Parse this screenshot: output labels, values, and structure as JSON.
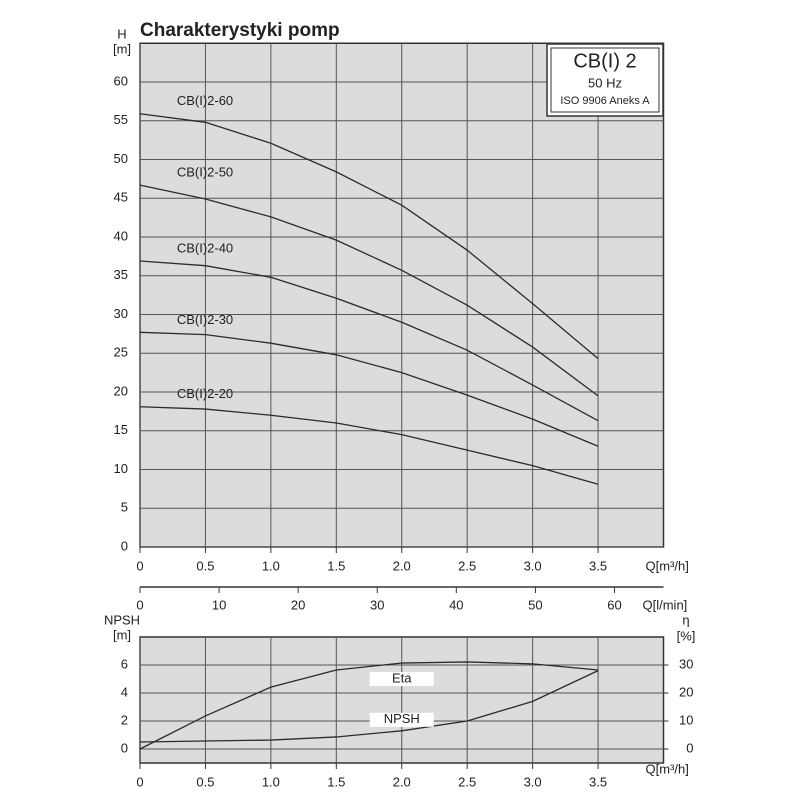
{
  "chart_data": [
    {
      "type": "line",
      "title": "Charakterystyki pomp",
      "annotations": [
        "CB(I) 2",
        "50 Hz",
        "ISO 9906 Aneks  A"
      ],
      "y_label": [
        "H",
        "[m]"
      ],
      "x_label": "Q[m³/h]",
      "x2_label": "Q[l/min]",
      "x": [
        0,
        0.5,
        1,
        1.5,
        2,
        2.5,
        3,
        3.5
      ],
      "xlim": [
        0,
        4
      ],
      "xticks": [
        0,
        0.5,
        {
          "value": 1,
          "label": "1.0"
        },
        1.5,
        {
          "value": 2,
          "label": "2.0"
        },
        2.5,
        {
          "value": 3,
          "label": "3.0"
        },
        3.5
      ],
      "x2lim": [
        0,
        66.2
      ],
      "x2ticks": [
        0,
        10,
        20,
        30,
        40,
        50,
        60
      ],
      "ylim": [
        0,
        65
      ],
      "yticks": [
        0,
        5,
        10,
        15,
        20,
        25,
        30,
        35,
        40,
        45,
        50,
        55,
        60
      ],
      "grid": true,
      "series": [
        {
          "name": "CB(I)2-60",
          "color": "#2b2b2b",
          "values": [
            55.9,
            54.8,
            52.1,
            48.4,
            44.1,
            38.3,
            31.4,
            24.3
          ]
        },
        {
          "name": "CB(I)2-50",
          "color": "#2b2b2b",
          "values": [
            46.7,
            44.9,
            42.6,
            39.6,
            35.7,
            31.2,
            25.8,
            19.5
          ]
        },
        {
          "name": "CB(I)2-40",
          "color": "#2b2b2b",
          "values": [
            36.9,
            36.3,
            34.8,
            32.1,
            29.0,
            25.4,
            20.9,
            16.3
          ]
        },
        {
          "name": "CB(I)2-30",
          "color": "#2b2b2b",
          "values": [
            27.7,
            27.4,
            26.3,
            24.8,
            22.5,
            19.6,
            16.5,
            13.0
          ]
        },
        {
          "name": "CB(I)2-20",
          "color": "#2b2b2b",
          "values": [
            18.1,
            17.8,
            17.0,
            16.0,
            14.5,
            12.5,
            10.5,
            8.1
          ]
        }
      ]
    },
    {
      "type": "line",
      "y_label": [
        "NPSH",
        "[m]"
      ],
      "y2_label": [
        "η",
        "[%]"
      ],
      "x_label": "Q[m³/h]",
      "x": [
        0,
        0.5,
        1,
        1.5,
        2,
        2.5,
        3,
        3.5
      ],
      "xlim": [
        0,
        4
      ],
      "xticks": [
        0,
        0.5,
        {
          "value": 1,
          "label": "1.0"
        },
        1.5,
        {
          "value": 2,
          "label": "2.0"
        },
        2.5,
        {
          "value": 3,
          "label": "3.0"
        },
        3.5
      ],
      "ylim": [
        -1,
        8
      ],
      "yticks": [
        0,
        2,
        4,
        6
      ],
      "y2lim": [
        -5,
        40
      ],
      "y2ticks": [
        0,
        10,
        20,
        30
      ],
      "grid": true,
      "series": [
        {
          "name": "Eta",
          "color": "#2b2b2b",
          "axis": "y2",
          "values": [
            0,
            11.8,
            22.1,
            28.2,
            30.7,
            31.1,
            30.4,
            28.2
          ]
        },
        {
          "name": "NPSH",
          "color": "#2b2b2b",
          "values": [
            0.5,
            0.57,
            0.64,
            0.86,
            1.3,
            2.0,
            3.4,
            5.6
          ]
        }
      ]
    }
  ]
}
